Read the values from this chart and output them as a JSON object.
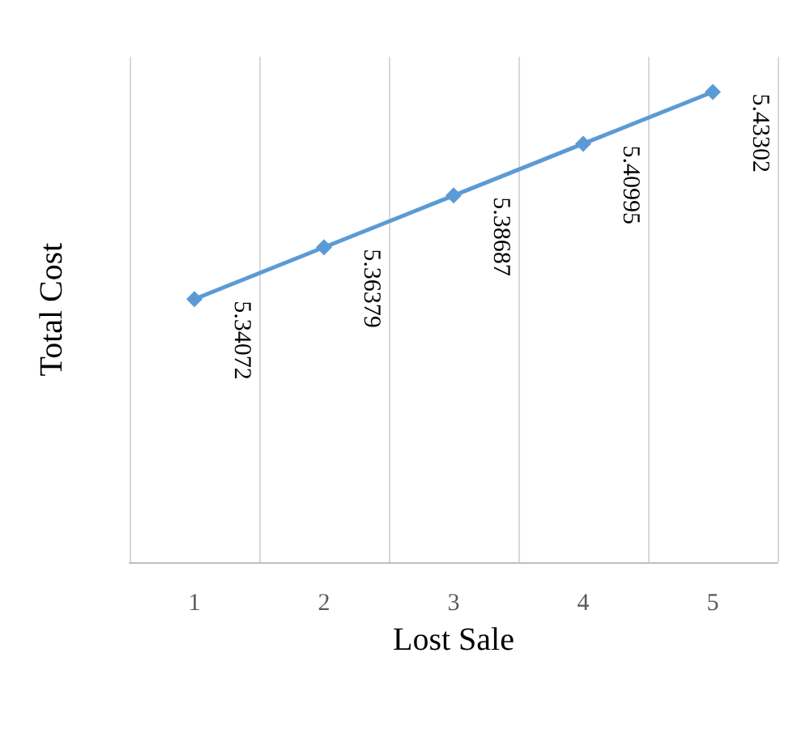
{
  "chart_data": {
    "type": "line",
    "xlabel": "Lost Sale",
    "ylabel": "Total Cost",
    "categories": [
      "1",
      "2",
      "3",
      "4",
      "5"
    ],
    "series": [
      {
        "color": "#5b9bd5",
        "values": [
          5.34072,
          5.36379,
          5.38687,
          5.40995,
          5.43302
        ]
      }
    ],
    "data_labels": true,
    "marker": "diamond",
    "line_style": "solid",
    "grid": "x",
    "tick_labels": "x"
  }
}
